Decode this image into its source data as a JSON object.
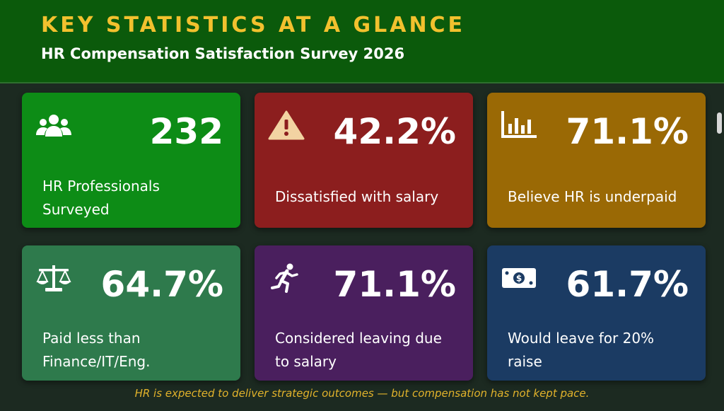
{
  "header": {
    "title": "KEY STATISTICS AT A GLANCE",
    "subtitle": "HR Compensation Satisfaction Survey 2026"
  },
  "cards": [
    {
      "value": "232",
      "label": "HR Professionals Surveyed",
      "icon": "users-icon",
      "color": "#0d8c16"
    },
    {
      "value": "42.2%",
      "label": "Dissatisfied with salary",
      "icon": "warning-icon",
      "color": "#8c1e1e"
    },
    {
      "value": "71.1%",
      "label": "Believe HR is underpaid",
      "icon": "bar-chart-icon",
      "color": "#9a6905"
    },
    {
      "value": "64.7%",
      "label": "Paid less than Finance/IT/Eng.",
      "icon": "scales-icon",
      "color": "#2e7a4c"
    },
    {
      "value": "71.1%",
      "label": "Considered leaving due to salary",
      "icon": "running-person-icon",
      "color": "#4a1f5e"
    },
    {
      "value": "61.7%",
      "label": "Would leave for 20% raise",
      "icon": "money-icon",
      "color": "#1b3b63"
    }
  ],
  "footer": {
    "note": "HR is expected to deliver strategic outcomes — but compensation has not kept pace.",
    "color": "#e2b32b"
  }
}
